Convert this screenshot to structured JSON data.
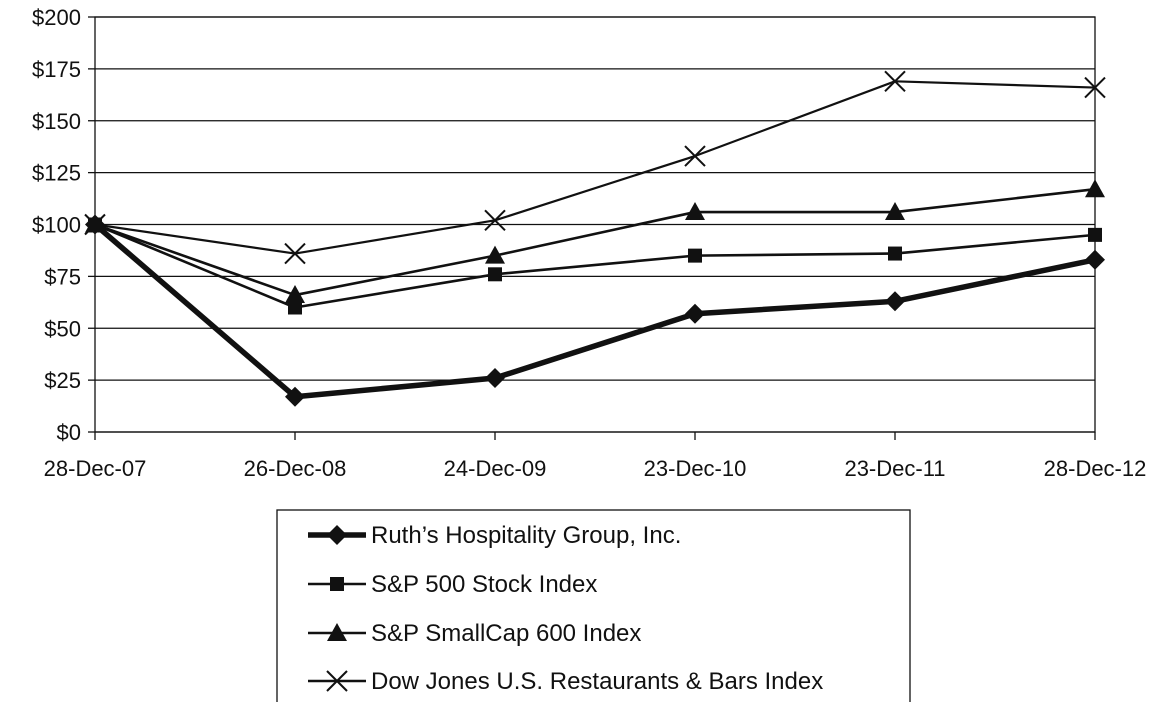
{
  "chart_data": {
    "type": "line",
    "title": "",
    "xlabel": "",
    "ylabel": "",
    "categories": [
      "28-Dec-07",
      "26-Dec-08",
      "24-Dec-09",
      "23-Dec-10",
      "23-Dec-11",
      "28-Dec-12"
    ],
    "ylim": [
      0,
      200
    ],
    "y_ticks": [
      0,
      25,
      50,
      75,
      100,
      125,
      150,
      175,
      200
    ],
    "y_tick_labels": [
      "$0",
      "$25",
      "$50",
      "$75",
      "$100",
      "$125",
      "$150",
      "$175",
      "$200"
    ],
    "grid": "horizontal",
    "legend_position": "bottom",
    "series": [
      {
        "name": "Ruth’s Hospitality Group, Inc.",
        "marker": "diamond",
        "values": [
          100,
          17,
          26,
          57,
          63,
          83
        ],
        "color": "#111111"
      },
      {
        "name": "S&P 500 Stock Index",
        "marker": "square",
        "values": [
          100,
          60,
          76,
          85,
          86,
          95
        ],
        "color": "#111111"
      },
      {
        "name": "S&P SmallCap 600 Index",
        "marker": "triangle",
        "values": [
          100,
          66,
          85,
          106,
          106,
          117
        ],
        "color": "#111111"
      },
      {
        "name": "Dow Jones U.S. Restaurants & Bars Index",
        "marker": "x",
        "values": [
          100,
          86,
          102,
          133,
          169,
          166
        ],
        "color": "#111111"
      }
    ]
  }
}
